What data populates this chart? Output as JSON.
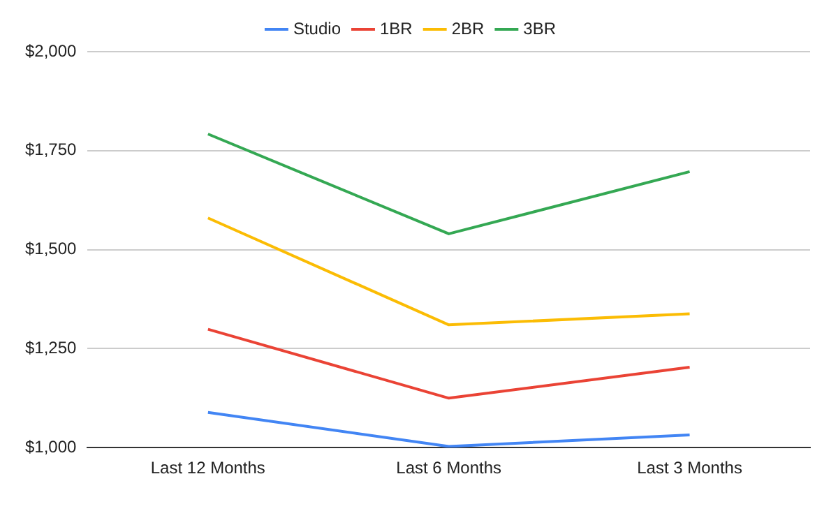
{
  "chart_data": {
    "type": "line",
    "categories": [
      "Last 12 Months",
      "Last 6 Months",
      "Last 3 Months"
    ],
    "series": [
      {
        "name": "Studio",
        "color": "#4285f4",
        "values": [
          1089,
          1003,
          1032
        ]
      },
      {
        "name": "1BR",
        "color": "#ea4335",
        "values": [
          1299,
          1125,
          1203
        ]
      },
      {
        "name": "2BR",
        "color": "#fbbc04",
        "values": [
          1580,
          1310,
          1338
        ]
      },
      {
        "name": "3BR",
        "color": "#34a853",
        "values": [
          1792,
          1540,
          1697
        ]
      }
    ],
    "ylim": [
      1000,
      2000
    ],
    "yticks": [
      {
        "value": 1000,
        "label": "$1,000"
      },
      {
        "value": 1250,
        "label": "$1,250"
      },
      {
        "value": 1500,
        "label": "$1,500"
      },
      {
        "value": 1750,
        "label": "$1,750"
      },
      {
        "value": 2000,
        "label": "$2,000"
      }
    ],
    "grid": "y",
    "legend": "top",
    "marker": "none",
    "line_style": "solid"
  }
}
